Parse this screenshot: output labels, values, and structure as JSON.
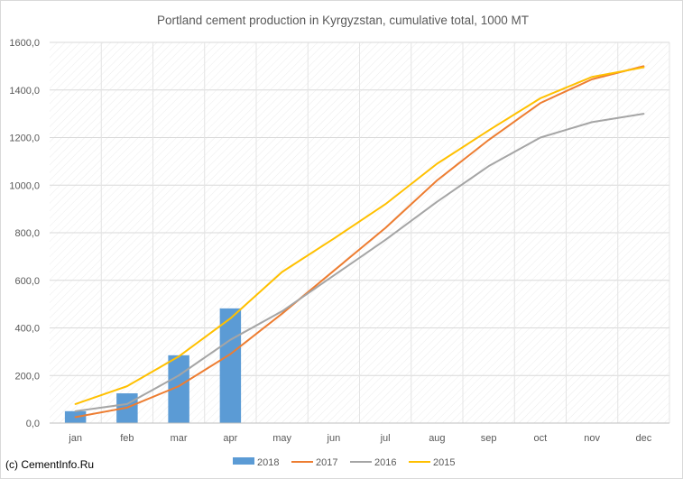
{
  "chart_data": {
    "type": "bar",
    "title": "Portland cement production in Kyrgyzstan, cumulative total, 1000 MT",
    "categories": [
      "jan",
      "feb",
      "mar",
      "apr",
      "may",
      "jun",
      "jul",
      "aug",
      "sep",
      "oct",
      "nov",
      "dec"
    ],
    "ylim": [
      0,
      1600
    ],
    "yticks": [
      "0,0",
      "200,0",
      "400,0",
      "600,0",
      "800,0",
      "1000,0",
      "1200,0",
      "1400,0",
      "1600,0"
    ],
    "grid": true,
    "legend_position": "bottom",
    "series": [
      {
        "name": "2018",
        "type": "bar",
        "color": "#5b9bd5",
        "values": [
          50,
          125,
          285,
          482,
          null,
          null,
          null,
          null,
          null,
          null,
          null,
          null
        ]
      },
      {
        "name": "2017",
        "type": "line",
        "color": "#ed7d31",
        "values": [
          25,
          65,
          155,
          290,
          460,
          640,
          820,
          1020,
          1190,
          1345,
          1445,
          1500
        ]
      },
      {
        "name": "2016",
        "type": "line",
        "color": "#a5a5a5",
        "values": [
          50,
          80,
          200,
          350,
          470,
          620,
          770,
          930,
          1080,
          1200,
          1265,
          1300
        ]
      },
      {
        "name": "2015",
        "type": "line",
        "color": "#ffc000",
        "values": [
          80,
          155,
          280,
          440,
          635,
          775,
          920,
          1090,
          1230,
          1365,
          1455,
          1495
        ]
      }
    ]
  },
  "credit": "(c) CementInfo.Ru"
}
